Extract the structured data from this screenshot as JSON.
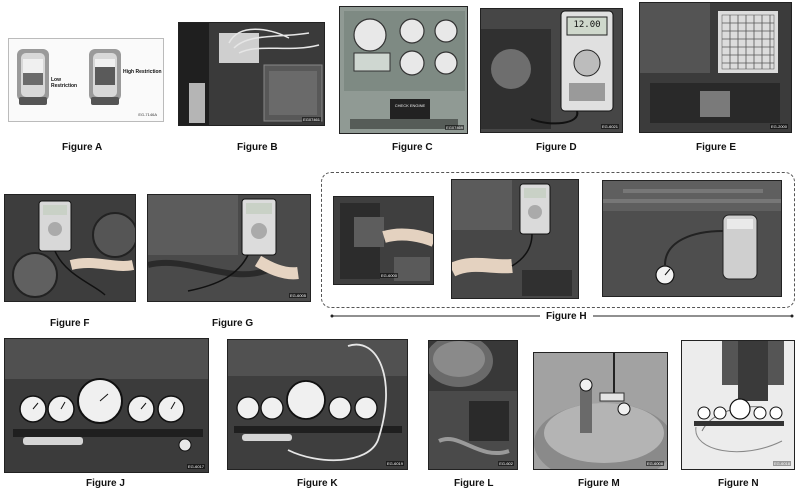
{
  "figures": {
    "a": {
      "caption": "Figure A",
      "label_low": "Low Restriction",
      "label_high": "High Restriction",
      "code": "EG-7146A"
    },
    "b": {
      "caption": "Figure B",
      "code": "EG07461"
    },
    "c": {
      "caption": "Figure C",
      "code": "EG07469",
      "screen_text": "CHECK ENGINE"
    },
    "d": {
      "caption": "Figure D",
      "reading": "12.00",
      "code": "EG-6021"
    },
    "e": {
      "caption": "Figure E",
      "code": "EG-2000"
    },
    "f": {
      "caption": "Figure F"
    },
    "g": {
      "caption": "Figure G",
      "code": "EG-6005"
    },
    "h": {
      "caption": "Figure H",
      "code": "EG-6000"
    },
    "j": {
      "caption": "Figure J",
      "code": "EG-6017"
    },
    "k": {
      "caption": "Figure K",
      "code": "EG-6019"
    },
    "l": {
      "caption": "Figure L",
      "code": "EG-602"
    },
    "m": {
      "caption": "Figure M",
      "code": "EG-6008"
    },
    "n": {
      "caption": "Figure N",
      "code": "EG-6018"
    }
  }
}
